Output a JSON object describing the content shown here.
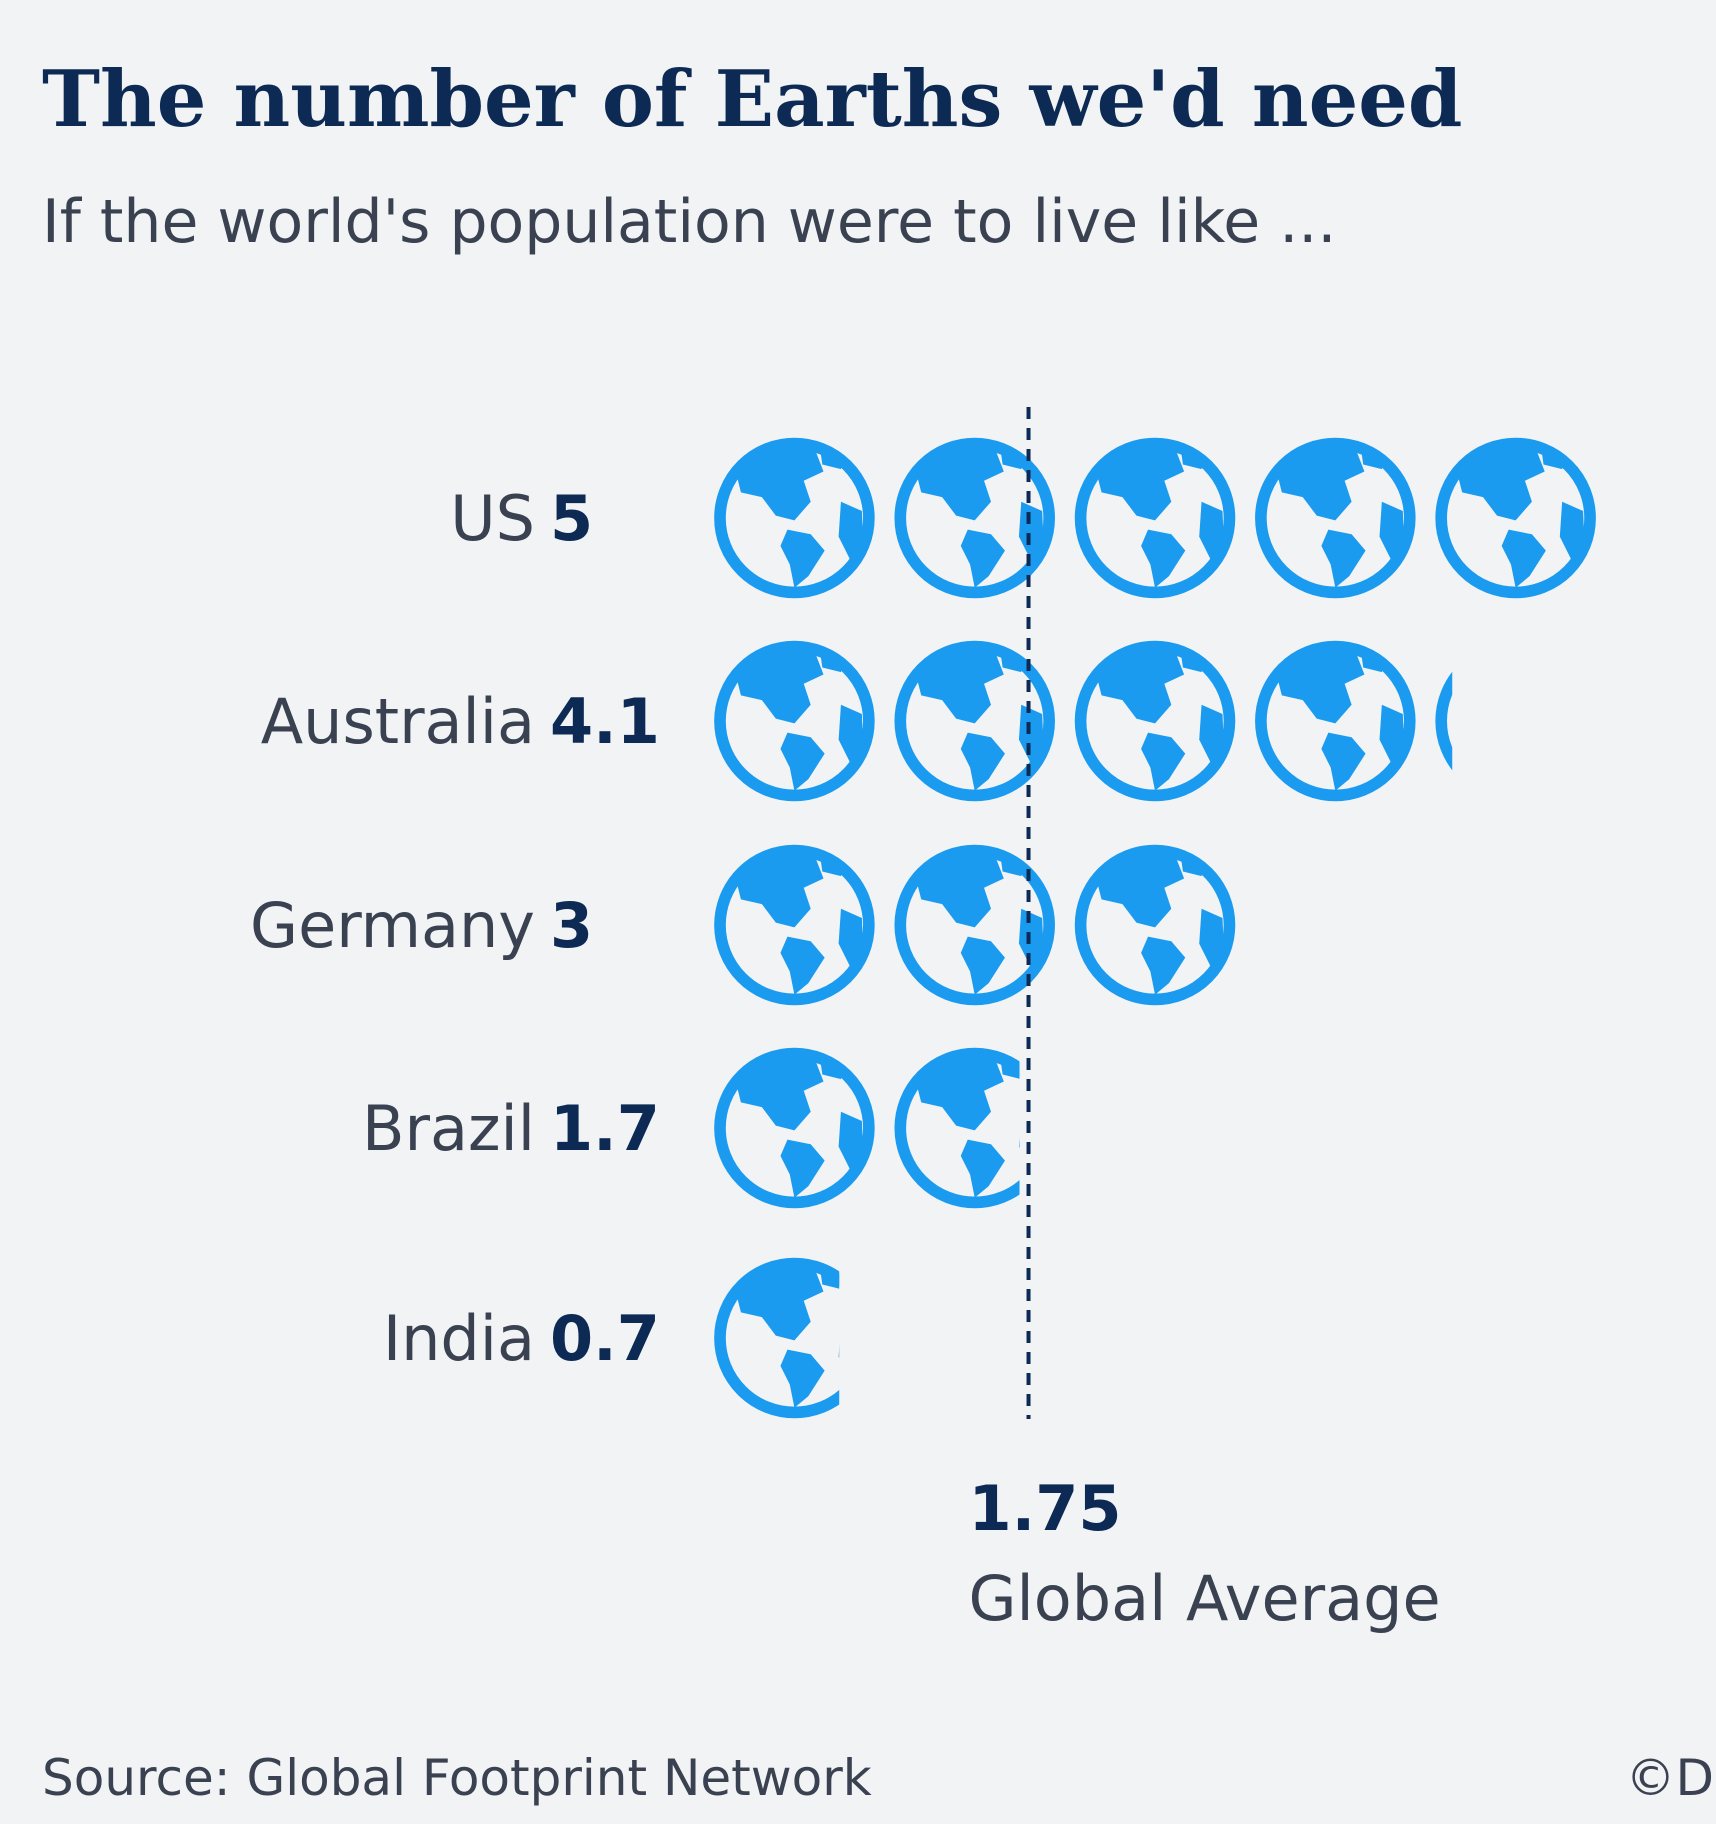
{
  "chart_data": {
    "type": "pictogram",
    "title": "The number of Earths we'd need",
    "subtitle": "If the world's population were to live like ...",
    "categories": [
      "US",
      "Australia",
      "Germany",
      "Brazil",
      "India"
    ],
    "values": [
      5,
      4.1,
      3,
      1.7,
      0.7
    ],
    "color": "#1a9bf0",
    "reference": {
      "value": 1.75,
      "label": "Global Average"
    },
    "source": "Source: Global Footprint Network",
    "credit": "©D"
  }
}
